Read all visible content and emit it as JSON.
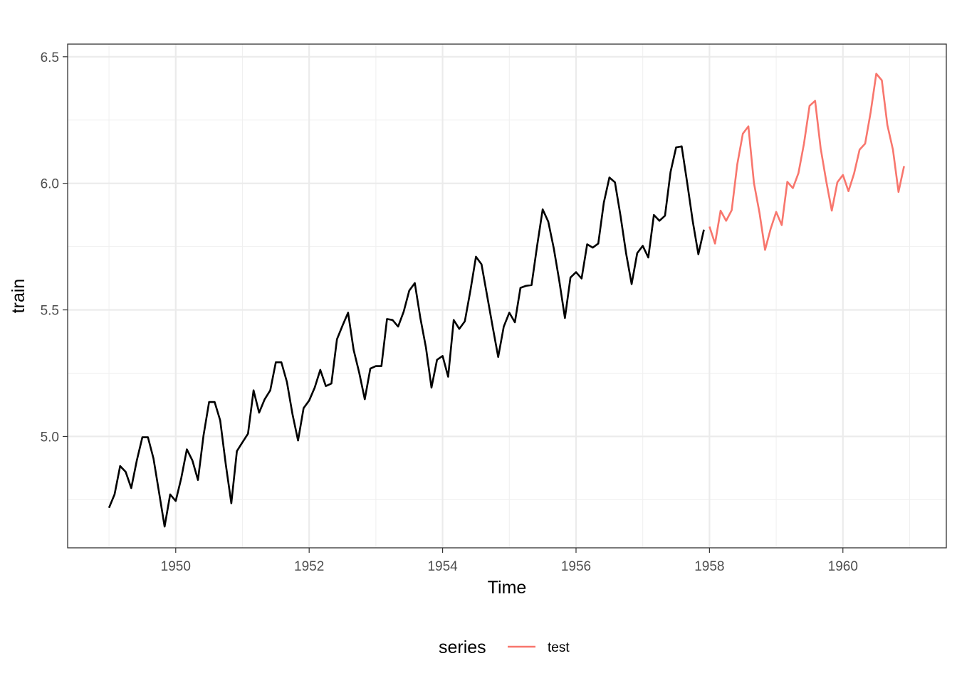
{
  "chart_data": {
    "type": "line",
    "xlabel": "Time",
    "ylabel": "train",
    "xlim": [
      1948.38,
      1961.55
    ],
    "ylim": [
      4.56,
      6.55
    ],
    "x_ticks": [
      1950,
      1952,
      1954,
      1956,
      1958,
      1960
    ],
    "y_ticks": [
      5.0,
      5.5,
      6.0,
      6.5
    ],
    "x_tick_labels": [
      "1950",
      "1952",
      "1954",
      "1956",
      "1958",
      "1960"
    ],
    "y_tick_labels": [
      "5.0",
      "5.5",
      "6.0",
      "6.5"
    ],
    "grid": true,
    "legend": {
      "title": "series",
      "position": "bottom",
      "entries": [
        {
          "label": "test",
          "color": "#f8766d"
        }
      ]
    },
    "series": [
      {
        "role": "train",
        "color": "#000000",
        "x_start": 1949.0,
        "step": 0.0833333,
        "values": [
          4.718,
          4.771,
          4.883,
          4.86,
          4.796,
          4.905,
          4.997,
          4.997,
          4.913,
          4.779,
          4.644,
          4.771,
          4.745,
          4.836,
          4.949,
          4.905,
          4.828,
          5.004,
          5.136,
          5.136,
          5.063,
          4.89,
          4.736,
          4.942,
          4.977,
          5.011,
          5.182,
          5.094,
          5.147,
          5.182,
          5.293,
          5.293,
          5.215,
          5.088,
          4.984,
          5.112,
          5.142,
          5.193,
          5.263,
          5.199,
          5.209,
          5.384,
          5.438,
          5.489,
          5.342,
          5.252,
          5.147,
          5.268,
          5.278,
          5.278,
          5.464,
          5.46,
          5.434,
          5.493,
          5.576,
          5.606,
          5.468,
          5.352,
          5.193,
          5.303,
          5.318,
          5.236,
          5.46,
          5.425,
          5.455,
          5.576,
          5.71,
          5.68,
          5.557,
          5.434,
          5.314,
          5.434,
          5.489,
          5.451,
          5.587,
          5.595,
          5.598,
          5.753,
          5.897,
          5.849,
          5.743,
          5.613,
          5.468,
          5.628,
          5.649,
          5.624,
          5.759,
          5.746,
          5.762,
          5.924,
          6.023,
          6.004,
          5.872,
          5.724,
          5.602,
          5.724,
          5.753,
          5.707,
          5.875,
          5.852,
          5.872,
          6.045,
          6.142,
          6.146,
          6.001,
          5.849,
          5.72,
          5.817
        ]
      },
      {
        "name": "test",
        "color": "#f8766d",
        "x_start": 1958.0,
        "step": 0.0833333,
        "values": [
          5.829,
          5.762,
          5.892,
          5.852,
          5.894,
          6.075,
          6.196,
          6.225,
          6.001,
          5.883,
          5.737,
          5.82,
          5.887,
          5.835,
          6.006,
          5.981,
          6.04,
          6.157,
          6.306,
          6.326,
          6.138,
          6.009,
          5.892,
          6.004,
          6.033,
          5.969,
          6.038,
          6.133,
          6.157,
          6.282,
          6.433,
          6.407,
          6.23,
          6.133,
          5.966,
          6.068
        ]
      }
    ]
  }
}
